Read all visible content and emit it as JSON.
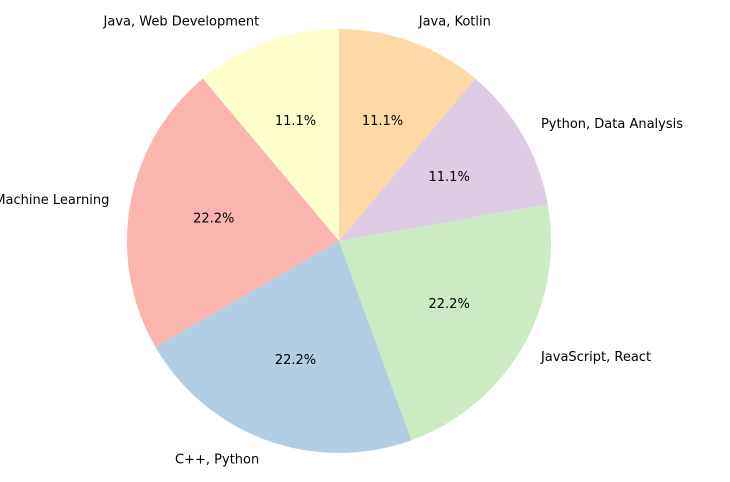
{
  "chart_data": {
    "type": "pie",
    "title": "",
    "start_angle_deg": 90,
    "direction": "counterclockwise",
    "labels": [
      "Java, Web Development",
      "Python, Machine Learning",
      "C++, Python",
      "JavaScript, React",
      "Python, Data Analysis",
      "Java, Kotlin"
    ],
    "values": [
      1,
      2,
      2,
      2,
      1,
      1
    ],
    "percent_labels": [
      "11.1%",
      "22.2%",
      "22.2%",
      "22.2%",
      "11.1%",
      "11.1%"
    ],
    "colors": [
      "#ffffcc",
      "#fbb4ae",
      "#b3cde3",
      "#ccebc5",
      "#decbe4",
      "#fed9a6"
    ],
    "legend": "none"
  }
}
